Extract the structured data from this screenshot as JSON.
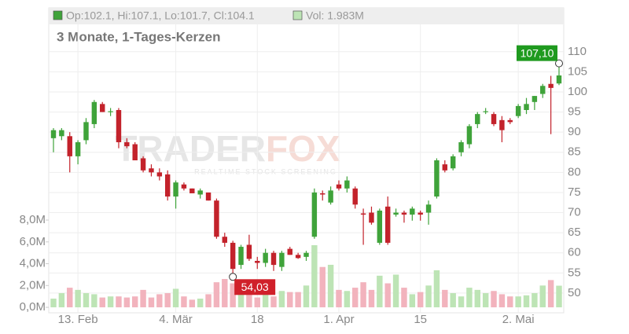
{
  "chart_data": {
    "type": "candlestick",
    "legend": {
      "ohlc": "Op:102.1, Hi:107.1, Lo:101.7, Cl:104.1",
      "volume": "Vol: 1.983M"
    },
    "subtitle": "3 Monate, 1-Tages-Kerzen",
    "watermark": {
      "left": "TRADER",
      "right": "FOX",
      "tagline": "REALTIME STOCK SCREENING"
    },
    "categories": [
      null,
      null,
      null,
      "13. Feb",
      null,
      null,
      null,
      null,
      null,
      null,
      null,
      null,
      null,
      null,
      null,
      "4. Mär",
      null,
      null,
      null,
      null,
      null,
      null,
      null,
      null,
      null,
      "18",
      null,
      null,
      null,
      null,
      null,
      null,
      null,
      null,
      null,
      "1. Apr",
      null,
      null,
      null,
      null,
      null,
      null,
      null,
      null,
      null,
      "15",
      null,
      null,
      null,
      null,
      null,
      null,
      null,
      null,
      null,
      null,
      null,
      "2. Mai",
      null,
      null,
      null,
      null,
      null
    ],
    "open": [
      88.5,
      89,
      89,
      84,
      88,
      92,
      97,
      95,
      95.5,
      87.5,
      87,
      83.5,
      81,
      80,
      79.5,
      74,
      77,
      76,
      74.5,
      75,
      73,
      64,
      62.5,
      57,
      62,
      58,
      57.5,
      60,
      56.5,
      61,
      59.5,
      59,
      64,
      74.8,
      72.5,
      77,
      76,
      76,
      69.8,
      70,
      62.5,
      71.5,
      69.5,
      70,
      69.5,
      70,
      70,
      74,
      82,
      81,
      85,
      87,
      92,
      95,
      94.5,
      93,
      93,
      94,
      95.5,
      97.5,
      99.5,
      102,
      102.1
    ],
    "high": [
      91,
      91,
      90,
      88,
      93.5,
      98,
      97.5,
      96,
      96,
      88.5,
      87.5,
      84,
      82,
      81,
      80.5,
      78,
      77.5,
      76,
      76,
      75,
      73.5,
      65,
      63,
      62,
      64.5,
      59,
      61,
      60.5,
      60.5,
      61.5,
      60,
      60.5,
      76,
      75.5,
      76.5,
      78,
      79,
      76.5,
      71,
      71.5,
      71,
      74,
      71,
      70.5,
      71.5,
      70.5,
      73,
      83.5,
      83,
      84.5,
      88,
      92,
      95,
      96,
      95,
      94,
      93.5,
      97,
      98.5,
      99,
      102,
      104,
      107.1
    ],
    "low": [
      85,
      88,
      80,
      82,
      87,
      91,
      95,
      94,
      86,
      86,
      83,
      80,
      79,
      78,
      73,
      71,
      75.5,
      75,
      73.5,
      73,
      63.5,
      61.5,
      54.03,
      56,
      58,
      56,
      56.5,
      55.5,
      55.5,
      59.5,
      58.5,
      58,
      63.5,
      73,
      72,
      75.5,
      75,
      71,
      62,
      67,
      62,
      62,
      69,
      67.5,
      68,
      68,
      67,
      73.5,
      80,
      80.5,
      84,
      86,
      91,
      94.5,
      91.5,
      87.5,
      92,
      93.5,
      94.5,
      95.5,
      98.5,
      89.5,
      101.7
    ],
    "close": [
      90.5,
      90.5,
      84,
      87.5,
      92.5,
      97.5,
      95,
      95.2,
      87.5,
      86.5,
      83,
      80.5,
      80,
      79,
      74,
      77.5,
      76,
      74.8,
      75.5,
      73,
      64,
      62.5,
      56,
      61.5,
      58.5,
      57.5,
      60,
      57,
      60,
      59.5,
      58.7,
      60,
      75,
      74.5,
      75.5,
      76,
      78,
      72,
      69.5,
      67.5,
      70.5,
      62.5,
      70,
      69.5,
      71,
      69.5,
      72,
      83,
      80.5,
      84,
      87.5,
      91.5,
      94.5,
      95.2,
      92,
      90.5,
      92.5,
      96.5,
      97,
      99,
      101.5,
      101,
      104.1
    ],
    "volume": [
      0.8,
      1.3,
      1.8,
      1.6,
      1.3,
      1.2,
      0.9,
      1.0,
      1.0,
      0.9,
      1.0,
      1.6,
      0.9,
      1.2,
      1.3,
      1.7,
      1.0,
      0.7,
      0.8,
      1.2,
      2.3,
      2.6,
      2.2,
      1.8,
      1.2,
      0.9,
      1.5,
      1.0,
      1.5,
      1.4,
      1.4,
      2.0,
      5.7,
      3.7,
      3.9,
      1.6,
      1.5,
      1.8,
      2.3,
      1.6,
      2.9,
      2.2,
      3.0,
      1.8,
      1.2,
      1.4,
      2.0,
      3.4,
      1.6,
      1.3,
      1.0,
      1.8,
      1.6,
      1.3,
      1.5,
      1.2,
      1.0,
      1.0,
      1.1,
      1.3,
      2.0,
      2.5,
      1.983
    ],
    "up_color": "#3fa33a",
    "down_color": "#c3222b",
    "volume_up_color": "#bde4b5",
    "volume_down_color": "#f2b3bd",
    "ylim": [
      45.1,
      120.9
    ],
    "yticks": [
      50,
      55,
      60,
      65,
      70,
      75,
      80,
      85,
      90,
      95,
      100,
      105,
      110
    ],
    "y2lim": [
      -0.5,
      27.46
    ],
    "y2ticks": [
      {
        "value": 0,
        "label": "0,0M"
      },
      {
        "value": 2,
        "label": "2,0M"
      },
      {
        "value": 4,
        "label": "4,0M"
      },
      {
        "value": 6,
        "label": "6,0M"
      },
      {
        "value": 8,
        "label": "8,0M"
      }
    ],
    "grid": true,
    "max_marker": {
      "value": 107.1,
      "label": "107,10",
      "color": "#1f9a1f"
    },
    "min_marker": {
      "value": 54.03,
      "label": "54,03",
      "color": "#d0202a"
    }
  }
}
